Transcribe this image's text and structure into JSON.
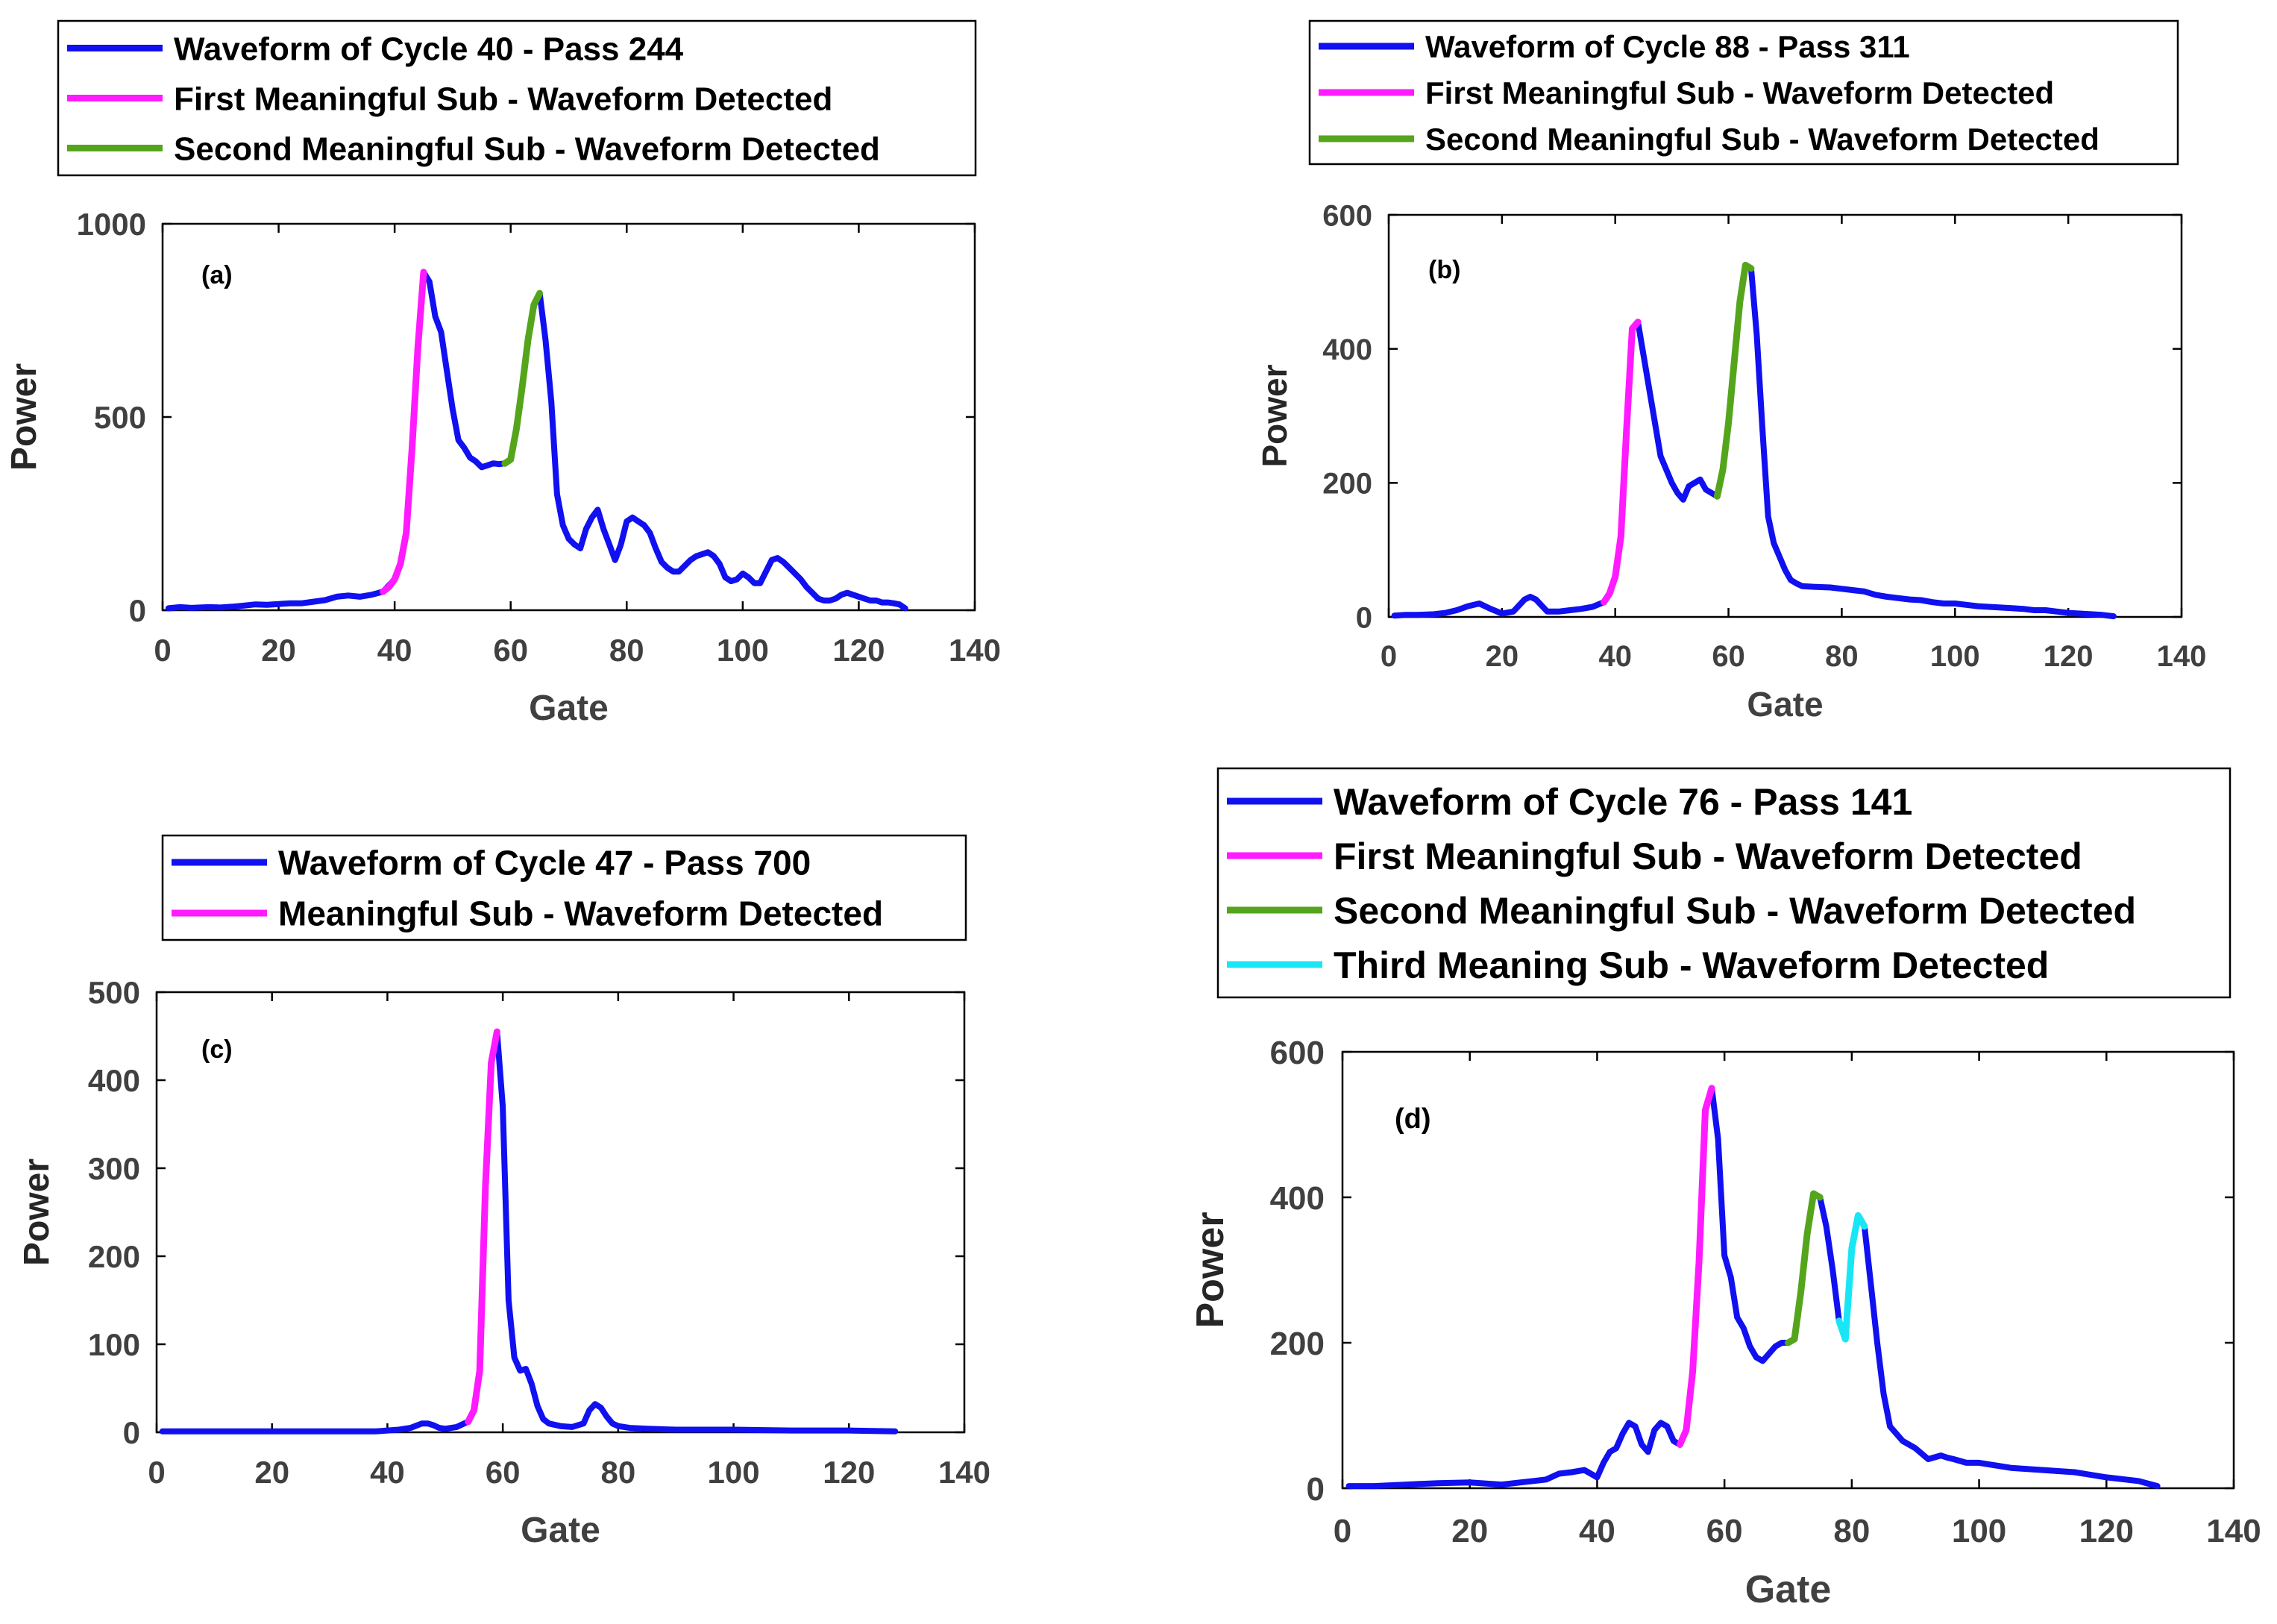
{
  "chart_data": [
    {
      "type": "line",
      "panel_label": "(a)",
      "xlabel": "Gate",
      "ylabel": "Power",
      "xlim": [
        0,
        140
      ],
      "ylim": [
        0,
        1000
      ],
      "xticks": [
        0,
        20,
        40,
        60,
        80,
        100,
        120,
        140
      ],
      "yticks": [
        0,
        500,
        1000
      ],
      "legend": [
        "Waveform of Cycle 40 - Pass 244",
        "First Meaningful Sub - Waveform Detected",
        "Second Meaningful Sub - Waveform Detected"
      ],
      "colors": [
        "#1010f0",
        "#ff1aff",
        "#55a51c"
      ],
      "x": [
        1,
        3,
        5,
        8,
        10,
        12,
        14,
        16,
        18,
        20,
        22,
        24,
        26,
        28,
        30,
        32,
        34,
        36,
        38,
        40,
        41,
        42,
        43,
        44,
        45,
        46,
        47,
        48,
        49,
        50,
        51,
        52,
        53,
        54,
        55,
        56,
        57,
        58,
        59,
        60,
        61,
        62,
        63,
        64,
        65,
        66,
        67,
        68,
        69,
        70,
        71,
        72,
        73,
        74,
        75,
        76,
        77,
        78,
        79,
        80,
        81,
        82,
        83,
        84,
        85,
        86,
        87,
        88,
        89,
        90,
        91,
        92,
        93,
        94,
        95,
        96,
        97,
        98,
        99,
        100,
        101,
        102,
        103,
        104,
        105,
        106,
        107,
        108,
        109,
        110,
        111,
        112,
        113,
        114,
        115,
        116,
        117,
        118,
        119,
        120,
        121,
        122,
        123,
        124,
        125,
        126,
        127,
        128
      ],
      "series": [
        {
          "name": "Waveform of Cycle 40 - Pass 244",
          "values": [
            5,
            8,
            6,
            8,
            7,
            9,
            12,
            15,
            14,
            16,
            18,
            18,
            22,
            26,
            35,
            38,
            35,
            40,
            48,
            80,
            120,
            200,
            420,
            680,
            875,
            850,
            760,
            720,
            620,
            520,
            440,
            420,
            395,
            385,
            370,
            375,
            380,
            378,
            380,
            390,
            470,
            580,
            700,
            790,
            820,
            700,
            540,
            300,
            220,
            185,
            170,
            160,
            210,
            240,
            260,
            210,
            170,
            130,
            170,
            230,
            240,
            230,
            220,
            200,
            160,
            125,
            110,
            100,
            100,
            115,
            130,
            140,
            145,
            150,
            140,
            120,
            85,
            75,
            80,
            95,
            85,
            70,
            70,
            100,
            130,
            135,
            125,
            110,
            95,
            80,
            60,
            45,
            30,
            25,
            25,
            30,
            40,
            45,
            40,
            35,
            30,
            25,
            25,
            20,
            20,
            18,
            15,
            5
          ]
        },
        {
          "name": "First Meaningful Sub - Waveform Detected",
          "x": [
            38,
            39,
            40,
            41,
            42,
            43,
            44,
            45
          ],
          "values": [
            48,
            60,
            80,
            120,
            200,
            420,
            680,
            875
          ]
        },
        {
          "name": "Second Meaningful Sub - Waveform Detected",
          "x": [
            59,
            60,
            61,
            62,
            63,
            64,
            65
          ],
          "values": [
            380,
            390,
            470,
            580,
            700,
            790,
            820
          ]
        }
      ]
    },
    {
      "type": "line",
      "panel_label": "(b)",
      "xlabel": "Gate",
      "ylabel": "Power",
      "xlim": [
        0,
        140
      ],
      "ylim": [
        0,
        600
      ],
      "xticks": [
        0,
        20,
        40,
        60,
        80,
        100,
        120,
        140
      ],
      "yticks": [
        0,
        200,
        400,
        600
      ],
      "legend": [
        "Waveform of Cycle 88 - Pass 311",
        "First Meaningful Sub - Waveform Detected",
        "Second Meaningful Sub - Waveform Detected"
      ],
      "colors": [
        "#1010f0",
        "#ff1aff",
        "#55a51c"
      ],
      "x": [
        1,
        3,
        5,
        8,
        10,
        12,
        14,
        16,
        18,
        20,
        22,
        24,
        25,
        26,
        28,
        30,
        32,
        34,
        36,
        38,
        39,
        40,
        41,
        42,
        43,
        44,
        45,
        46,
        47,
        48,
        49,
        50,
        51,
        52,
        53,
        54,
        55,
        56,
        57,
        58,
        59,
        60,
        61,
        62,
        63,
        64,
        65,
        66,
        67,
        68,
        69,
        70,
        71,
        72,
        73,
        75,
        78,
        80,
        82,
        84,
        86,
        88,
        90,
        92,
        94,
        96,
        98,
        100,
        102,
        104,
        106,
        108,
        110,
        112,
        114,
        116,
        118,
        120,
        122,
        124,
        126,
        128
      ],
      "series": [
        {
          "name": "Waveform of Cycle 88 - Pass 311",
          "values": [
            2,
            3,
            3,
            4,
            6,
            10,
            16,
            20,
            12,
            5,
            8,
            26,
            30,
            26,
            8,
            8,
            10,
            12,
            15,
            22,
            35,
            60,
            120,
            280,
            430,
            440,
            390,
            340,
            290,
            240,
            220,
            200,
            185,
            175,
            195,
            200,
            205,
            190,
            185,
            180,
            220,
            290,
            380,
            470,
            525,
            520,
            420,
            280,
            150,
            110,
            90,
            70,
            55,
            50,
            46,
            45,
            44,
            42,
            40,
            38,
            33,
            30,
            28,
            26,
            25,
            22,
            20,
            20,
            18,
            16,
            15,
            14,
            13,
            12,
            10,
            10,
            8,
            6,
            5,
            4,
            3,
            1
          ]
        },
        {
          "name": "First Meaningful Sub - Waveform Detected",
          "x": [
            38,
            39,
            40,
            41,
            42,
            43,
            44
          ],
          "values": [
            22,
            35,
            60,
            120,
            280,
            430,
            440
          ]
        },
        {
          "name": "Second Meaningful Sub - Waveform Detected",
          "x": [
            58,
            59,
            60,
            61,
            62,
            63,
            64
          ],
          "values": [
            180,
            220,
            290,
            380,
            470,
            525,
            520
          ]
        }
      ]
    },
    {
      "type": "line",
      "panel_label": "(c)",
      "xlabel": "Gate",
      "ylabel": "Power",
      "xlim": [
        0,
        140
      ],
      "ylim": [
        0,
        500
      ],
      "xticks": [
        0,
        20,
        40,
        60,
        80,
        100,
        120,
        140
      ],
      "yticks": [
        0,
        100,
        200,
        300,
        400,
        500
      ],
      "legend": [
        "Waveform of Cycle 47 - Pass 700",
        "Meaningful Sub - Waveform Detected"
      ],
      "colors": [
        "#1010f0",
        "#ff1aff"
      ],
      "x": [
        1,
        10,
        20,
        30,
        35,
        38,
        40,
        42,
        44,
        46,
        47,
        48,
        49,
        50,
        52,
        54,
        55,
        56,
        57,
        58,
        59,
        60,
        61,
        62,
        63,
        64,
        65,
        66,
        67,
        68,
        70,
        72,
        74,
        75,
        76,
        77,
        78,
        79,
        80,
        82,
        85,
        90,
        100,
        110,
        120,
        128
      ],
      "series": [
        {
          "name": "Waveform of Cycle 47 - Pass 700",
          "values": [
            1,
            1,
            1,
            1,
            1,
            1,
            2,
            3,
            5,
            10,
            10,
            8,
            5,
            4,
            6,
            12,
            25,
            70,
            280,
            420,
            455,
            370,
            150,
            85,
            70,
            72,
            55,
            30,
            15,
            10,
            7,
            6,
            10,
            25,
            32,
            28,
            18,
            10,
            7,
            5,
            4,
            3,
            3,
            2,
            2,
            1
          ]
        },
        {
          "name": "Meaningful Sub - Waveform Detected",
          "x": [
            54,
            55,
            56,
            57,
            58,
            59
          ],
          "values": [
            12,
            25,
            70,
            280,
            420,
            455
          ]
        }
      ]
    },
    {
      "type": "line",
      "panel_label": "(d)",
      "xlabel": "Gate",
      "ylabel": "Power",
      "xlim": [
        0,
        140
      ],
      "ylim": [
        0,
        600
      ],
      "xticks": [
        0,
        20,
        40,
        60,
        80,
        100,
        120,
        140
      ],
      "yticks": [
        0,
        200,
        400,
        600
      ],
      "legend": [
        "Waveform of Cycle 76 - Pass 141",
        "First Meaningful Sub - Waveform Detected",
        "Second Meaningful Sub - Waveform Detected",
        "Third Meaning Sub - Waveform Detected"
      ],
      "colors": [
        "#1010f0",
        "#ff1aff",
        "#55a51c",
        "#19e6f5"
      ],
      "x": [
        1,
        5,
        10,
        15,
        20,
        25,
        28,
        30,
        32,
        34,
        36,
        38,
        40,
        41,
        42,
        43,
        44,
        45,
        46,
        47,
        48,
        49,
        50,
        51,
        52,
        53,
        54,
        55,
        56,
        57,
        58,
        59,
        60,
        61,
        62,
        63,
        64,
        65,
        66,
        67,
        68,
        69,
        70,
        71,
        72,
        73,
        74,
        75,
        76,
        77,
        78,
        79,
        80,
        81,
        82,
        83,
        84,
        85,
        86,
        87,
        88,
        90,
        92,
        94,
        95,
        96,
        98,
        100,
        105,
        110,
        115,
        120,
        125,
        128
      ],
      "series": [
        {
          "name": "Waveform of Cycle 76 - Pass 141",
          "values": [
            3,
            3,
            5,
            7,
            8,
            5,
            8,
            10,
            12,
            20,
            22,
            25,
            15,
            35,
            50,
            55,
            75,
            90,
            85,
            60,
            50,
            80,
            90,
            85,
            65,
            60,
            80,
            160,
            310,
            520,
            550,
            480,
            320,
            290,
            235,
            220,
            195,
            180,
            175,
            185,
            195,
            200,
            200,
            205,
            270,
            350,
            405,
            400,
            360,
            300,
            230,
            205,
            330,
            375,
            360,
            280,
            200,
            130,
            85,
            75,
            65,
            55,
            40,
            45,
            42,
            40,
            35,
            35,
            28,
            25,
            22,
            15,
            10,
            3
          ]
        },
        {
          "name": "First Meaningful Sub - Waveform Detected",
          "x": [
            53,
            54,
            55,
            56,
            57,
            58
          ],
          "values": [
            60,
            80,
            160,
            310,
            520,
            550
          ]
        },
        {
          "name": "Second Meaningful Sub - Waveform Detected",
          "x": [
            70,
            71,
            72,
            73,
            74,
            75
          ],
          "values": [
            200,
            205,
            270,
            350,
            405,
            400
          ]
        },
        {
          "name": "Third Meaning Sub - Waveform Detected",
          "x": [
            78,
            79,
            80,
            81,
            82
          ],
          "values": [
            230,
            205,
            330,
            375,
            360
          ]
        }
      ]
    }
  ]
}
